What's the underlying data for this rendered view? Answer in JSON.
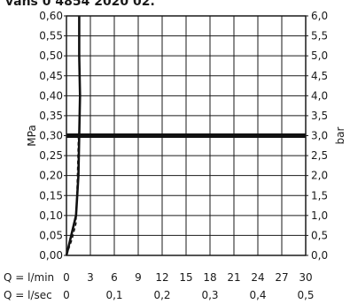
{
  "header_fragment": "vans 0 4854 2020 02.",
  "chart_data": {
    "type": "line",
    "title": "",
    "ylabel_left": "MPa",
    "ylabel_right": "bar",
    "xlabel_min": "Q = l/min",
    "xlabel_sec": "Q = l/sec",
    "xlim": [
      0,
      30
    ],
    "ylim": [
      0,
      0.6
    ],
    "grid": true,
    "x_ticks_min": [
      "0",
      "3",
      "6",
      "9",
      "12",
      "15",
      "18",
      "21",
      "24",
      "27",
      "30"
    ],
    "x_ticks_sec": [
      "0",
      "0,1",
      "0,2",
      "0,3",
      "0,4",
      "0,5"
    ],
    "y_ticks_left": [
      "0,00",
      "0,05",
      "0,10",
      "0,15",
      "0,20",
      "0,25",
      "0,30",
      "0,35",
      "0,40",
      "0,45",
      "0,50",
      "0,55",
      "0,60"
    ],
    "y_ticks_right": [
      "0,0",
      "0,5",
      "1,0",
      "1,5",
      "2,0",
      "2,5",
      "3,0",
      "3,5",
      "4,0",
      "4,5",
      "5,0",
      "5,5",
      "6,0"
    ],
    "reference_line_y": 0.3,
    "series": [
      {
        "style": "solid",
        "x": [
          0,
          0.6,
          1.2,
          1.5,
          1.6,
          1.7,
          1.6,
          1.6
        ],
        "y": [
          0,
          0.05,
          0.1,
          0.2,
          0.3,
          0.4,
          0.5,
          0.6
        ]
      },
      {
        "style": "dashed",
        "x": [
          0,
          0.7,
          1.2,
          1.3,
          1.4,
          1.5
        ],
        "y": [
          0,
          0.04,
          0.08,
          0.15,
          0.22,
          0.3
        ]
      }
    ]
  }
}
